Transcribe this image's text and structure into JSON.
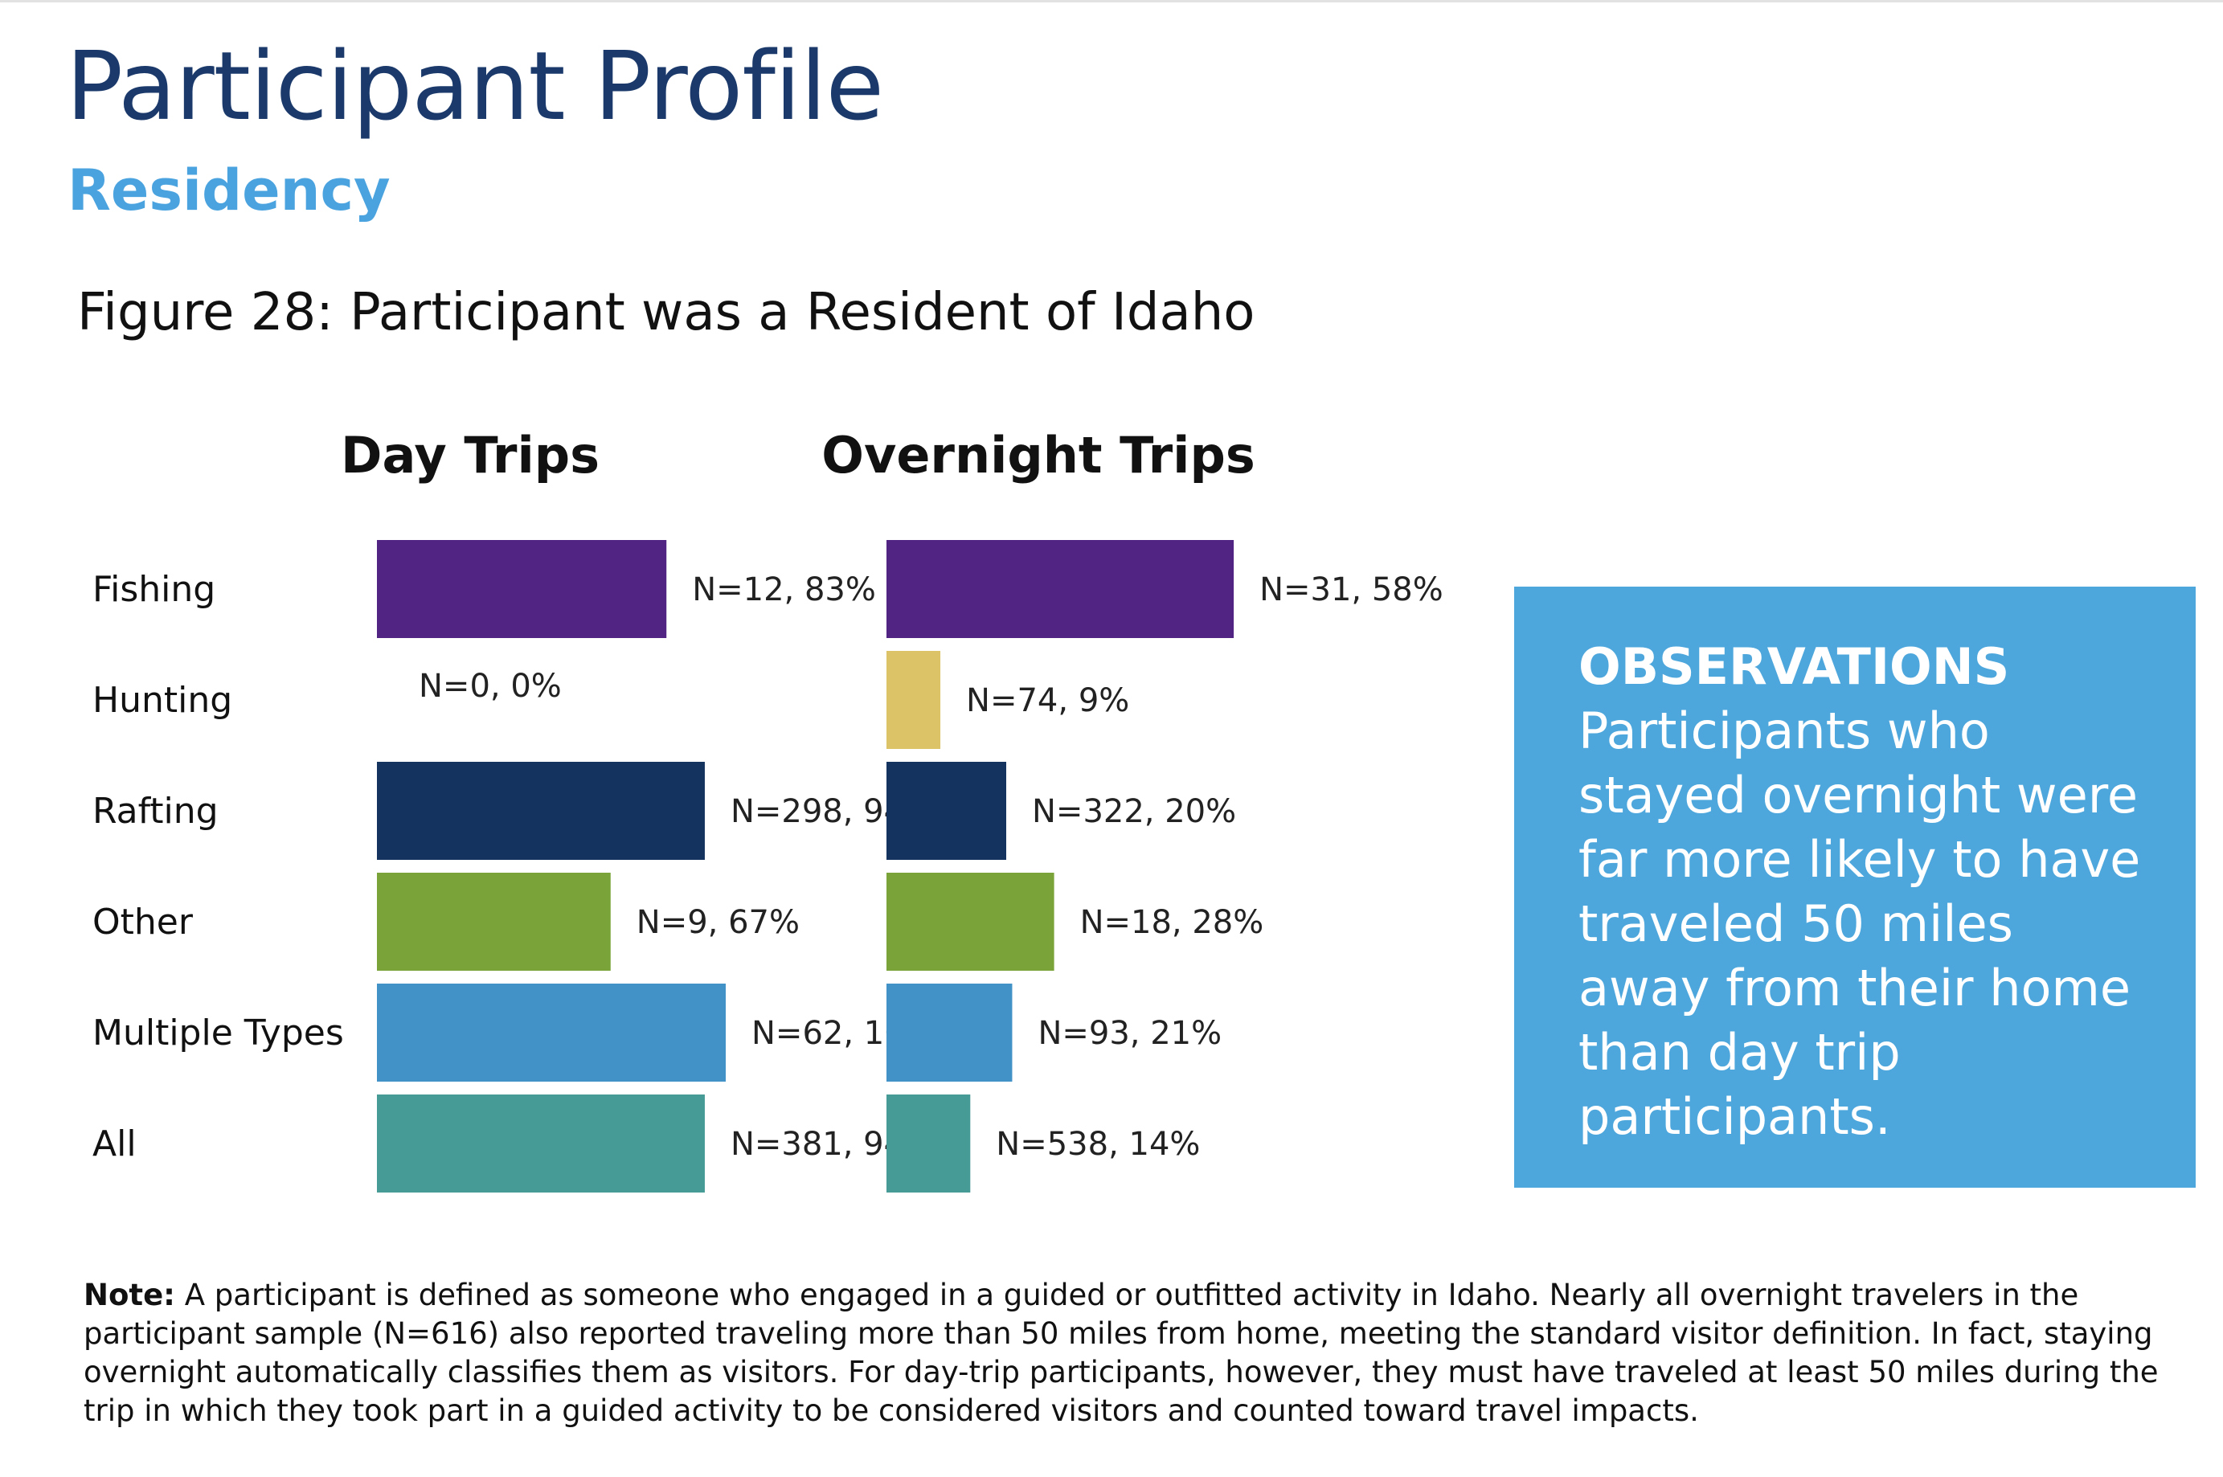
{
  "page": {
    "title": "Participant Profile",
    "section": "Residency",
    "figure_title": "Figure 28: Participant was a Resident of Idaho"
  },
  "chart_data": [
    {
      "type": "bar",
      "orientation": "horizontal",
      "title": "Day Trips",
      "categories": [
        "Fishing",
        "Hunting",
        "Rafting",
        "Other",
        "Multiple Types",
        "All"
      ],
      "values": [
        83,
        0,
        94,
        67,
        100,
        94
      ],
      "n": [
        12,
        0,
        298,
        9,
        62,
        381
      ],
      "labels": [
        "N=12, 83%",
        "N=0, 0%",
        "N=298, 94%",
        "N=9, 67%",
        "N=62, 100%",
        "N=381, 94%"
      ],
      "unit": "%",
      "xlim": [
        0,
        100
      ]
    },
    {
      "type": "bar",
      "orientation": "horizontal",
      "title": "Overnight Trips",
      "categories": [
        "Fishing",
        "Hunting",
        "Rafting",
        "Other",
        "Multiple Types",
        "All"
      ],
      "values": [
        58,
        9,
        20,
        28,
        21,
        14
      ],
      "n": [
        31,
        74,
        322,
        18,
        93,
        538
      ],
      "labels": [
        "N=31, 58%",
        "N=74, 9%",
        "N=322, 20%",
        "N=18, 28%",
        "N=93, 21%",
        "N=538, 14%"
      ],
      "unit": "%",
      "xlim": [
        0,
        58
      ]
    }
  ],
  "colors": {
    "Fishing": "#512483",
    "Hunting": "#dcc368",
    "Rafting": "#14335f",
    "Other": "#7aa43a",
    "Multiple Types": "#4291c7",
    "All": "#479b96"
  },
  "observations": {
    "heading": "OBSERVATIONS",
    "text": "Participants who stayed overnight were far more likely to have traveled 50 miles away from their home than day trip participants."
  },
  "note": {
    "label": "Note:",
    "text": " A participant is defined as someone who engaged in a guided or outfitted activity in Idaho. Nearly all overnight travelers in the participant sample (N=616) also reported traveling more than 50 miles from home, meeting the standard visitor definition. In fact, staying overnight automatically classifies them as visitors. For day-trip participants, however, they must have traveled at least 50 miles during the trip in which they took part in a guided activity to be considered visitors and counted toward travel impacts."
  }
}
